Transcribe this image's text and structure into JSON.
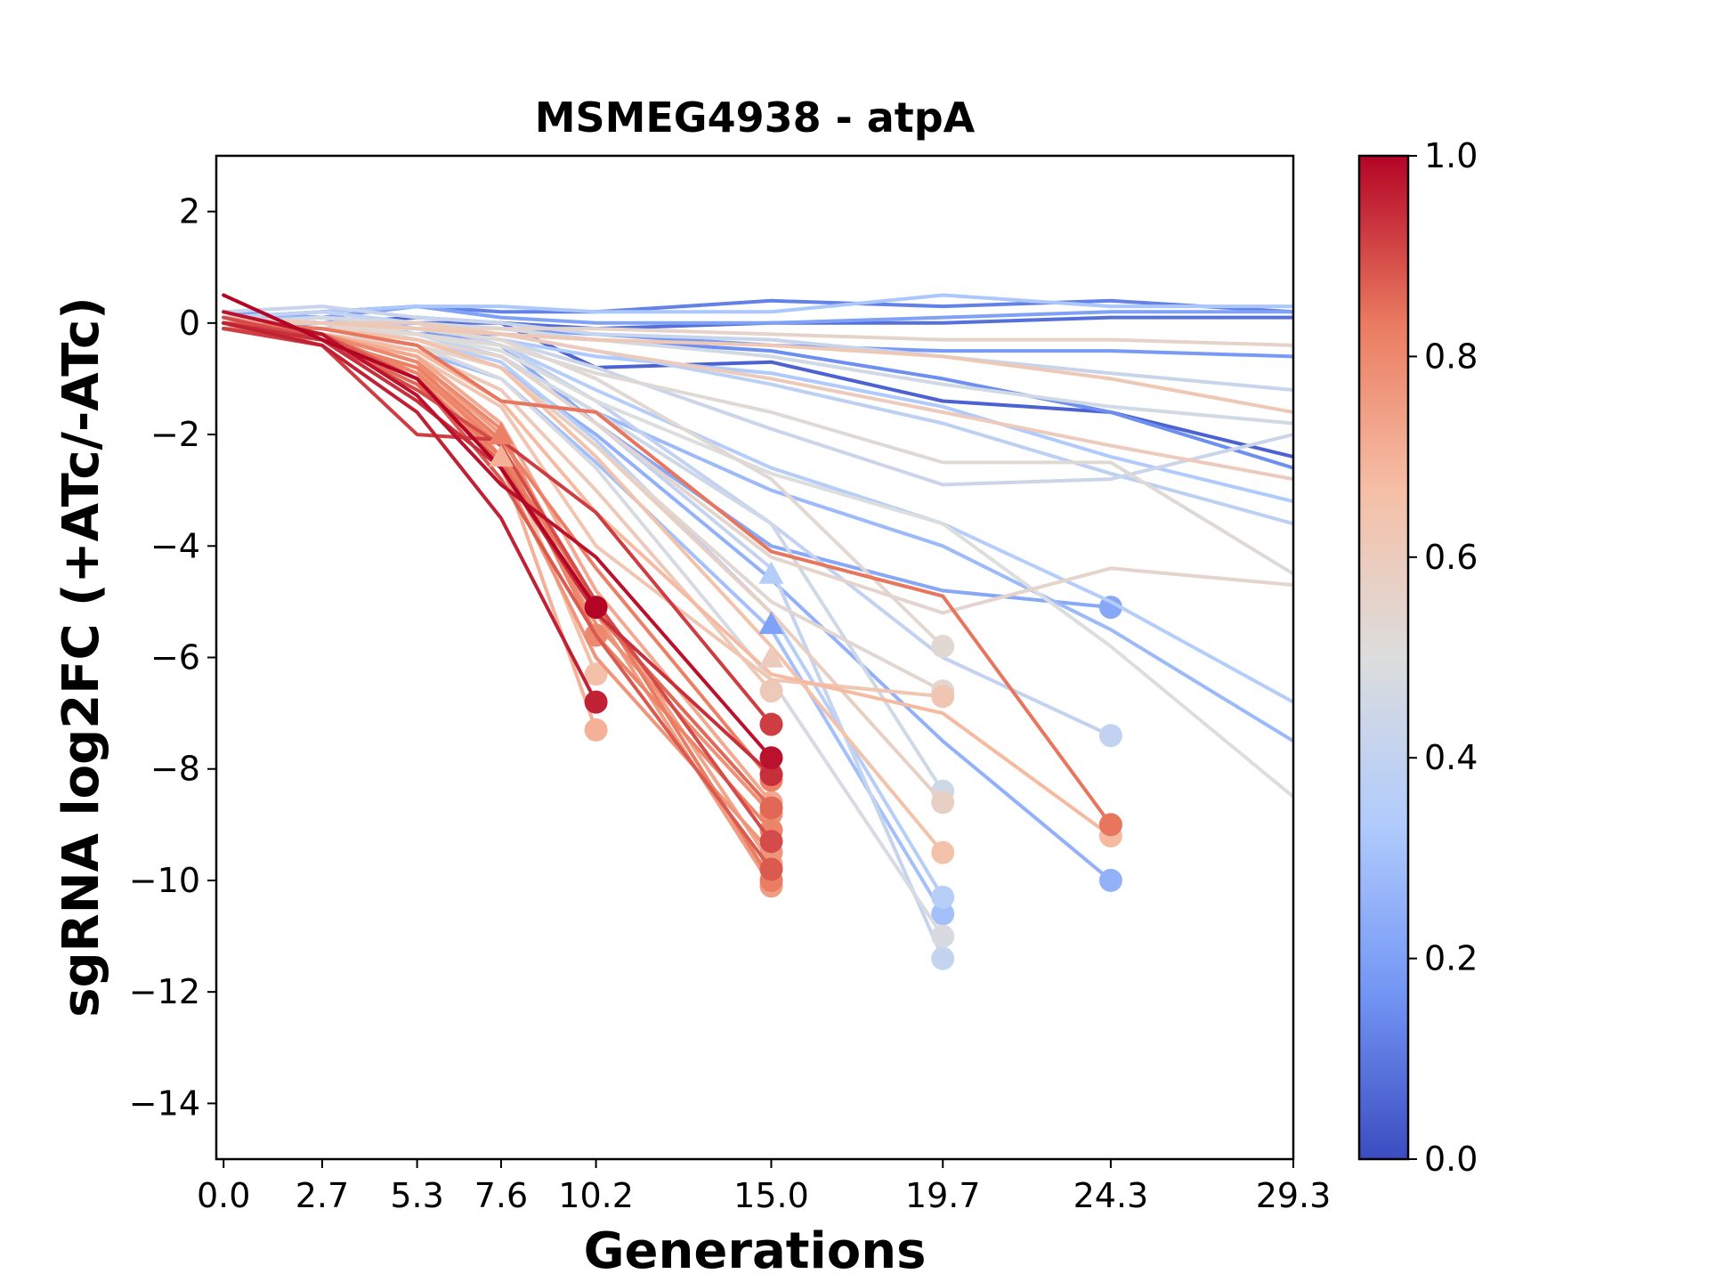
{
  "chart_data": {
    "type": "line",
    "title": "MSMEG4938 - atpA",
    "xlabel": "Generations",
    "ylabel": "sgRNA log2FC (+ATc/-ATc)",
    "x_ticks": [
      0.0,
      2.7,
      5.3,
      7.6,
      10.2,
      15.0,
      19.7,
      24.3,
      29.3
    ],
    "x_tick_labels": [
      "0.0",
      "2.7",
      "5.3",
      "7.6",
      "10.2",
      "15.0",
      "19.7",
      "24.3",
      "29.3"
    ],
    "xlim": [
      -0.2,
      29.3
    ],
    "ylim": [
      -15,
      3
    ],
    "y_ticks": [
      2,
      0,
      -2,
      -4,
      -6,
      -8,
      -10,
      -12,
      -14
    ],
    "y_tick_labels": [
      "2",
      "0",
      "−2",
      "−4",
      "−6",
      "−8",
      "−10",
      "−12",
      "−14"
    ],
    "grid": false,
    "legend": "none",
    "colorbar": {
      "colormap": "coolwarm",
      "range": [
        0,
        1
      ],
      "ticks": [
        0.0,
        0.2,
        0.4,
        0.6,
        0.8,
        1.0
      ],
      "tick_labels": [
        "0.0",
        "0.2",
        "0.4",
        "0.6",
        "0.8",
        "1.0"
      ],
      "colors": [
        "#3b4cc0",
        "#7396f5",
        "#b0cbfc",
        "#dcdddd",
        "#f6bfa6",
        "#ea7b60",
        "#b40426"
      ]
    },
    "series": [
      {
        "c": 0.05,
        "y": [
          0.1,
          0.0,
          0.1,
          0.0,
          -0.8,
          -0.7,
          -1.4,
          -1.6,
          -2.4
        ]
      },
      {
        "c": 0.08,
        "y": [
          0.0,
          0.1,
          0.0,
          0.0,
          -0.1,
          0.0,
          0.0,
          0.1,
          0.1
        ]
      },
      {
        "c": 0.12,
        "y": [
          0.1,
          0.2,
          0.3,
          0.2,
          0.2,
          0.4,
          0.3,
          0.4,
          0.2
        ]
      },
      {
        "c": 0.15,
        "y": [
          -0.1,
          0.0,
          -0.2,
          -0.2,
          -0.3,
          -0.5,
          -1.0,
          -1.6,
          -2.6
        ]
      },
      {
        "c": 0.18,
        "y": [
          0.0,
          -0.1,
          0.0,
          -0.1,
          -0.2,
          -0.4,
          -0.5,
          -0.5,
          -0.6
        ]
      },
      {
        "c": 0.2,
        "y": [
          0.2,
          0.1,
          0.3,
          0.1,
          0.0,
          0.0,
          0.1,
          0.2,
          0.2
        ]
      },
      {
        "c": 0.22,
        "y": [
          0.1,
          0.0,
          -0.1,
          -0.4,
          -1.8,
          -4.0,
          -4.8,
          -5.1
        ]
      },
      {
        "c": 0.25,
        "y": [
          0.0,
          0.0,
          -0.3,
          -0.8,
          -2.0,
          -4.6,
          -7.5,
          -10.0
        ]
      },
      {
        "c": 0.28,
        "y": [
          0.1,
          0.1,
          -0.2,
          -0.6,
          -1.6,
          -3.0,
          -4.0,
          -5.5,
          -7.5
        ]
      },
      {
        "c": 0.3,
        "y": [
          0.0,
          -0.2,
          -0.5,
          -1.0,
          -2.5,
          -5.5,
          -10.6
        ]
      },
      {
        "c": 0.32,
        "y": [
          0.1,
          0.2,
          0.3,
          0.3,
          0.2,
          0.2,
          0.5,
          0.3,
          0.3
        ]
      },
      {
        "c": 0.33,
        "y": [
          0.0,
          0.1,
          -0.1,
          -0.3,
          -0.6,
          -0.9,
          -1.5,
          -2.4,
          -3.2
        ]
      },
      {
        "c": 0.35,
        "y": [
          0.0,
          0.0,
          -0.2,
          -0.4,
          -1.2,
          -2.6,
          -3.6,
          -5.0,
          -6.8
        ]
      },
      {
        "c": 0.36,
        "y": [
          0.1,
          0.0,
          -0.3,
          -0.7,
          -2.1,
          -5.2,
          -10.3
        ]
      },
      {
        "c": 0.38,
        "y": [
          0.0,
          0.1,
          -0.1,
          -0.2,
          -0.5,
          -1.1,
          -1.8,
          -2.7,
          -3.6
        ]
      },
      {
        "c": 0.4,
        "y": [
          0.1,
          0.2,
          0.0,
          -0.4,
          -1.4,
          -3.6,
          -6.0,
          -7.4
        ]
      },
      {
        "c": 0.41,
        "y": [
          0.0,
          -0.1,
          -0.2,
          -0.6,
          -1.8,
          -4.4,
          -11.4
        ]
      },
      {
        "c": 0.42,
        "y": [
          0.2,
          0.3,
          0.1,
          0.0,
          -0.2,
          -0.3,
          -0.6,
          -0.9,
          -1.2
        ]
      },
      {
        "c": 0.43,
        "y": [
          0.0,
          0.0,
          -0.1,
          -0.3,
          -0.8,
          -1.9,
          -2.9,
          -2.8,
          -2.0
        ]
      },
      {
        "c": 0.45,
        "y": [
          0.1,
          0.0,
          -0.3,
          -0.6,
          -1.6,
          -3.6,
          -8.4
        ]
      },
      {
        "c": 0.46,
        "y": [
          0.0,
          0.1,
          0.0,
          -0.1,
          -0.3,
          -0.6,
          -1.1,
          -1.5,
          -1.8
        ]
      },
      {
        "c": 0.48,
        "y": [
          0.0,
          -0.1,
          -0.4,
          -1.0,
          -2.6,
          -6.4,
          -11.0
        ]
      },
      {
        "c": 0.5,
        "y": [
          0.0,
          -0.1,
          -0.2,
          -0.5,
          -1.4,
          -2.7,
          -3.6,
          -5.8,
          -8.5
        ]
      },
      {
        "c": 0.52,
        "y": [
          0.1,
          0.0,
          -0.2,
          -0.4,
          -0.9,
          -1.6,
          -2.5,
          -2.5,
          -4.5
        ]
      },
      {
        "c": 0.53,
        "y": [
          0.0,
          -0.1,
          -0.1,
          -0.3,
          -1.0,
          -2.8,
          -5.8
        ]
      },
      {
        "c": 0.54,
        "y": [
          -0.1,
          -0.2,
          -0.4,
          -0.8,
          -2.2,
          -5.0,
          -6.6
        ]
      },
      {
        "c": 0.55,
        "y": [
          0.0,
          0.0,
          -0.3,
          -0.6,
          -1.8,
          -4.2,
          -5.2,
          -4.4,
          -4.7
        ]
      },
      {
        "c": 0.56,
        "y": [
          0.0,
          0.0,
          -0.1,
          -0.1,
          -0.1,
          -0.2,
          -0.3,
          -0.3,
          -0.4
        ]
      },
      {
        "c": 0.58,
        "y": [
          -0.1,
          -0.1,
          -0.3,
          -0.8,
          -2.2,
          -5.2,
          -8.6
        ]
      },
      {
        "c": 0.6,
        "y": [
          0.1,
          0.0,
          0.0,
          -0.2,
          -0.5,
          -1.0,
          -1.6,
          -2.2,
          -2.8
        ]
      },
      {
        "c": 0.61,
        "y": [
          0.0,
          -0.2,
          -0.5,
          -1.2,
          -3.0,
          -6.6
        ]
      },
      {
        "c": 0.62,
        "y": [
          0.0,
          0.0,
          -0.1,
          -0.2,
          -0.3,
          -0.4,
          -0.6,
          -1.0,
          -1.6
        ]
      },
      {
        "c": 0.63,
        "y": [
          0.0,
          -0.2,
          -0.6,
          -1.5,
          -4.0,
          -6.4,
          -6.7
        ]
      },
      {
        "c": 0.65,
        "y": [
          0.0,
          -0.1,
          -0.3,
          -0.8,
          -2.4,
          -5.8,
          -9.5
        ]
      },
      {
        "c": 0.66,
        "y": [
          -0.1,
          -0.2,
          -0.6,
          -2.2,
          -6.3
        ]
      },
      {
        "c": 0.68,
        "y": [
          0.0,
          -0.2,
          -0.5,
          -1.4,
          -3.4,
          -6.3,
          -7.0,
          -9.2
        ]
      },
      {
        "c": 0.7,
        "y": [
          0.0,
          -0.3,
          -0.8,
          -2.5,
          -7.3
        ]
      },
      {
        "c": 0.72,
        "y": [
          -0.1,
          -0.2,
          -0.6,
          -1.8,
          -4.8,
          -8.6
        ]
      },
      {
        "c": 0.73,
        "y": [
          0.0,
          -0.3,
          -0.8,
          -2.2,
          -5.0,
          -9.7
        ]
      },
      {
        "c": 0.75,
        "y": [
          0.1,
          -0.2,
          -0.7,
          -2.0,
          -5.2,
          -10.1
        ]
      },
      {
        "c": 0.77,
        "y": [
          0.0,
          -0.3,
          -0.9,
          -2.6,
          -6.0,
          -9.5
        ]
      },
      {
        "c": 0.78,
        "y": [
          -0.1,
          -0.2,
          -0.7,
          -2.4,
          -5.4,
          -8.8
        ]
      },
      {
        "c": 0.8,
        "y": [
          0.0,
          -0.2,
          -0.7,
          -1.9,
          -5.6
        ]
      },
      {
        "c": 0.81,
        "y": [
          0.0,
          -0.2,
          -0.9,
          -2.2,
          -5.6,
          -9.1
        ]
      },
      {
        "c": 0.82,
        "y": [
          0.1,
          -0.3,
          -0.8,
          -2.1,
          -4.4,
          -8.2
        ]
      },
      {
        "c": 0.83,
        "y": [
          0.0,
          -0.3,
          -1.0,
          -2.4,
          -5.0,
          -10.0
        ]
      },
      {
        "c": 0.84,
        "y": [
          0.0,
          -0.1,
          -0.4,
          -1.4,
          -1.6,
          -4.1,
          -4.9,
          -9.0
        ]
      },
      {
        "c": 0.86,
        "y": [
          -0.1,
          -0.3,
          -1.1,
          -2.5,
          -5.2,
          -8.7
        ]
      },
      {
        "c": 0.88,
        "y": [
          0.0,
          -0.2,
          -1.0,
          -2.8,
          -5.6,
          -9.8
        ]
      },
      {
        "c": 0.9,
        "y": [
          0.1,
          -0.3,
          -1.2,
          -2.2,
          -5.0,
          -9.3
        ]
      },
      {
        "c": 0.92,
        "y": [
          -0.1,
          -0.4,
          -2.0,
          -2.1,
          -3.4,
          -7.2
        ]
      },
      {
        "c": 0.94,
        "y": [
          0.0,
          -0.3,
          -1.4,
          -2.6,
          -5.2,
          -8.1
        ]
      },
      {
        "c": 0.96,
        "y": [
          0.0,
          -0.4,
          -1.6,
          -3.5,
          -6.8
        ]
      },
      {
        "c": 0.98,
        "y": [
          0.2,
          -0.2,
          -1.3,
          -2.9,
          -4.2,
          -7.8
        ]
      },
      {
        "c": 1.0,
        "y": [
          0.5,
          -0.3,
          -1.0,
          -2.6,
          -5.1
        ]
      }
    ],
    "triangle_markers": [
      {
        "x": 7.6,
        "y": -2.0,
        "c": 0.82
      },
      {
        "x": 7.6,
        "y": -2.4,
        "c": 0.7
      },
      {
        "x": 15.0,
        "y": -4.5,
        "c": 0.35
      },
      {
        "x": 15.0,
        "y": -5.4,
        "c": 0.2
      },
      {
        "x": 15.0,
        "y": -6.0,
        "c": 0.6
      }
    ]
  }
}
